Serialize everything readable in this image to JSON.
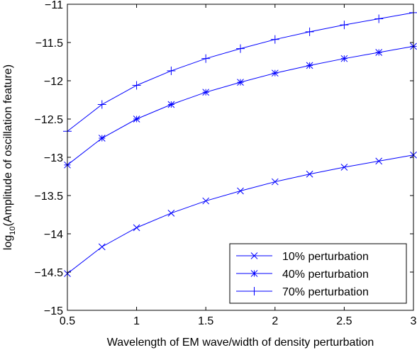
{
  "chart_data": {
    "type": "line",
    "title": "",
    "xlabel": "Wavelength of EM wave/width of density perturbation",
    "ylabel_main": "log",
    "ylabel_sub": "10",
    "ylabel_rest": "(Amplitude of oscillation feature)",
    "xlim": [
      0.5,
      3
    ],
    "ylim": [
      -15,
      -11
    ],
    "xticks": [
      0.5,
      1,
      1.5,
      2,
      2.5,
      3
    ],
    "xtick_labels": [
      "0.5",
      "1",
      "1.5",
      "2",
      "2.5",
      "3"
    ],
    "yticks": [
      -15,
      -14.5,
      -14,
      -13.5,
      -13,
      -12.5,
      -12,
      -11.5,
      -11
    ],
    "ytick_labels": [
      "−15",
      "−14.5",
      "−14",
      "−13.5",
      "−13",
      "−12.5",
      "−12",
      "−11.5",
      "−11"
    ],
    "grid": false,
    "legend_position": "bottom-right",
    "line_color": "#0000ff",
    "x": [
      0.5,
      0.75,
      1.0,
      1.25,
      1.5,
      1.75,
      2.0,
      2.25,
      2.5,
      2.75,
      3.0
    ],
    "series": [
      {
        "name": "10% perturbation",
        "marker": "x",
        "values": [
          -14.52,
          -14.17,
          -13.92,
          -13.73,
          -13.57,
          -13.44,
          -13.32,
          -13.22,
          -13.13,
          -13.05,
          -12.97
        ]
      },
      {
        "name": "40% perturbation",
        "marker": "asterisk",
        "values": [
          -13.1,
          -12.75,
          -12.5,
          -12.31,
          -12.15,
          -12.02,
          -11.9,
          -11.8,
          -11.71,
          -11.63,
          -11.55
        ]
      },
      {
        "name": "70% perturbation",
        "marker": "plus",
        "values": [
          -12.66,
          -12.31,
          -12.06,
          -11.87,
          -11.71,
          -11.58,
          -11.46,
          -11.36,
          -11.27,
          -11.19,
          -11.11
        ]
      }
    ]
  }
}
